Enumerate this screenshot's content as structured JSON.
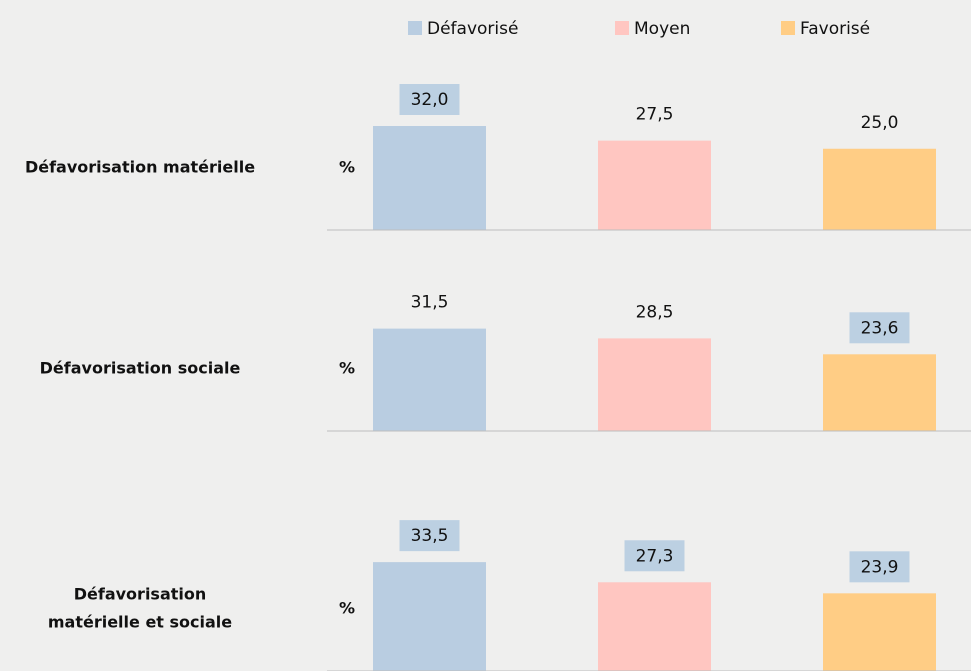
{
  "legend": {
    "items": [
      {
        "name": "Défavorisé",
        "color": "#b9cde1"
      },
      {
        "name": "Moyen",
        "color": "#ffc6c1"
      },
      {
        "name": "Favorisé",
        "color": "#ffcd85"
      }
    ]
  },
  "label_box_color": "#bcd0e2",
  "chart_data": [
    {
      "type": "bar",
      "title": "Défavorisation matérielle",
      "ylabel": "%",
      "values": [
        32.0,
        27.5,
        25.0
      ],
      "value_labels": [
        "32,0",
        "27,5",
        "25,0"
      ],
      "label_boxes": [
        true,
        false,
        false
      ],
      "ylim": [
        0,
        40
      ]
    },
    {
      "type": "bar",
      "title": "Défavorisation sociale",
      "ylabel": "%",
      "values": [
        31.5,
        28.5,
        23.6
      ],
      "value_labels": [
        "31,5",
        "28,5",
        "23,6"
      ],
      "label_boxes": [
        false,
        false,
        true
      ],
      "ylim": [
        0,
        40
      ]
    },
    {
      "type": "bar",
      "title": [
        "Défavorisation",
        "matérielle et sociale"
      ],
      "ylabel": "%",
      "values": [
        33.5,
        27.3,
        23.9
      ],
      "value_labels": [
        "33,5",
        "27,3",
        "23,9"
      ],
      "label_boxes": [
        true,
        true,
        true
      ],
      "ylim": [
        0,
        40
      ]
    }
  ]
}
